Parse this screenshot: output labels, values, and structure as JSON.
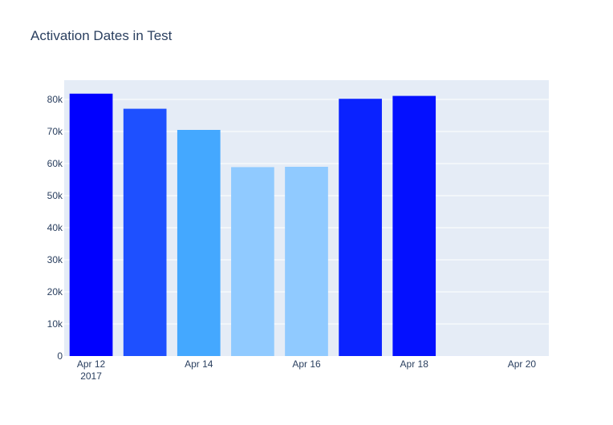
{
  "chart_data": {
    "type": "bar",
    "title": "Activation Dates in Test",
    "xlabel": "",
    "ylabel": "",
    "x": [
      "Apr 12",
      "Apr 13",
      "Apr 14",
      "Apr 15",
      "Apr 16",
      "Apr 17",
      "Apr 18",
      "Apr 19",
      "Apr 20"
    ],
    "values": [
      81800,
      77100,
      70500,
      58900,
      59000,
      80200,
      81100,
      80,
      20
    ],
    "bar_colors": [
      "#0000ff",
      "#1e50ff",
      "#44a8ff",
      "#90caff",
      "#90caff",
      "#0a22ff",
      "#0410ff",
      "#e0e8ff",
      "#e6ecfa"
    ],
    "ylim": [
      0,
      86000
    ],
    "y_ticks": [
      0,
      10000,
      20000,
      30000,
      40000,
      50000,
      60000,
      70000,
      80000
    ],
    "y_tick_labels": [
      "0",
      "10k",
      "20k",
      "30k",
      "40k",
      "50k",
      "60k",
      "70k",
      "80k"
    ],
    "x_tick_labels": [
      {
        "index": 0,
        "label": "Apr 12",
        "sublabel": "2017"
      },
      {
        "index": 2,
        "label": "Apr 14",
        "sublabel": ""
      },
      {
        "index": 4,
        "label": "Apr 16",
        "sublabel": ""
      },
      {
        "index": 6,
        "label": "Apr 18",
        "sublabel": ""
      },
      {
        "index": 8,
        "label": "Apr 20",
        "sublabel": ""
      }
    ],
    "grid": true,
    "legend": false,
    "colors": {
      "plot_background": "#e5ecf6",
      "grid": "#ffffff",
      "text": "#2a3f5f"
    }
  }
}
